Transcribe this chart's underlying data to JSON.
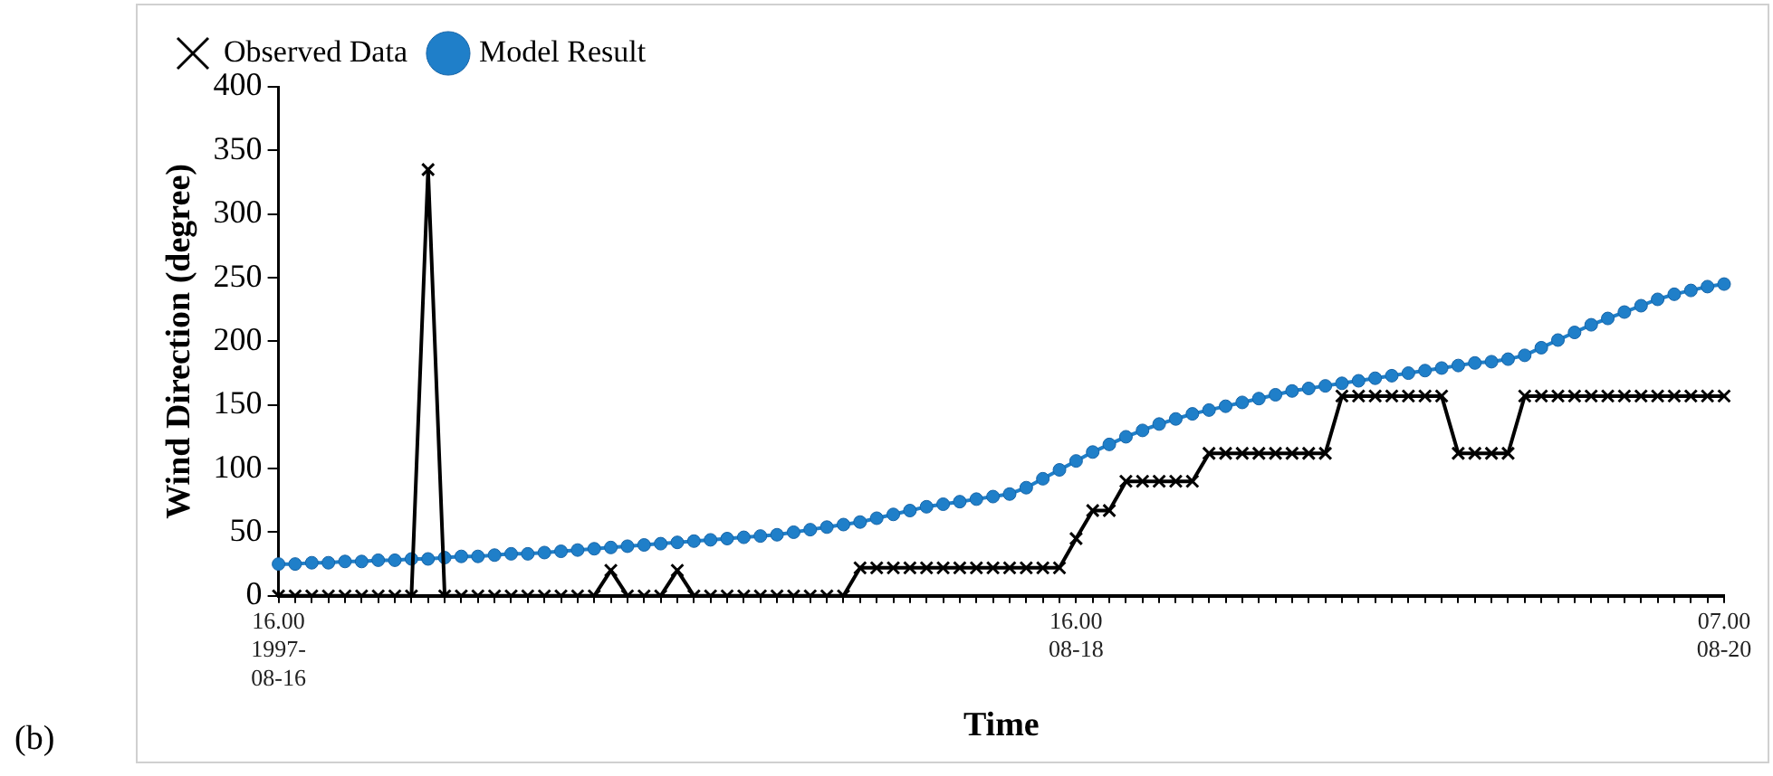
{
  "chart_data": {
    "type": "line",
    "categories": [
      "16.00\n1997-\n08-16",
      null,
      null,
      null,
      null,
      null,
      null,
      null,
      null,
      null,
      null,
      null,
      null,
      null,
      null,
      null,
      null,
      null,
      null,
      null,
      null,
      null,
      null,
      null,
      null,
      null,
      null,
      null,
      null,
      null,
      null,
      null,
      null,
      null,
      null,
      null,
      null,
      null,
      null,
      null,
      null,
      null,
      null,
      null,
      null,
      null,
      null,
      null,
      "16.00\n08-18",
      null,
      null,
      null,
      null,
      null,
      null,
      null,
      null,
      null,
      null,
      null,
      null,
      null,
      null,
      null,
      null,
      null,
      null,
      null,
      null,
      null,
      null,
      null,
      null,
      null,
      null,
      null,
      null,
      null,
      null,
      null,
      null,
      null,
      null,
      null,
      null,
      null,
      null,
      "07.00\n08-20"
    ],
    "series": [
      {
        "name": "Observed Data",
        "color": "#000000",
        "marker": "cross",
        "values": [
          0,
          0,
          0,
          0,
          0,
          0,
          0,
          0,
          0,
          335,
          0,
          0,
          0,
          0,
          0,
          0,
          0,
          0,
          0,
          0,
          20,
          0,
          0,
          0,
          20,
          0,
          0,
          0,
          0,
          0,
          0,
          0,
          0,
          0,
          0,
          22,
          22,
          22,
          22,
          22,
          22,
          22,
          22,
          22,
          22,
          22,
          22,
          22,
          45,
          67,
          67,
          90,
          90,
          90,
          90,
          90,
          112,
          112,
          112,
          112,
          112,
          112,
          112,
          112,
          157,
          157,
          157,
          157,
          157,
          157,
          157,
          112,
          112,
          112,
          112,
          157,
          157,
          157,
          157,
          157,
          157,
          157,
          157,
          157,
          157,
          157,
          157,
          157
        ]
      },
      {
        "name": "Model Result",
        "color": "#1f7fc9",
        "marker": "circle",
        "values": [
          25,
          25,
          26,
          26,
          27,
          27,
          28,
          28,
          29,
          29,
          30,
          31,
          31,
          32,
          33,
          33,
          34,
          35,
          36,
          37,
          38,
          39,
          40,
          41,
          42,
          43,
          44,
          45,
          46,
          47,
          48,
          50,
          52,
          54,
          56,
          58,
          61,
          64,
          67,
          70,
          72,
          74,
          76,
          78,
          80,
          85,
          92,
          99,
          106,
          113,
          119,
          125,
          130,
          135,
          139,
          143,
          146,
          149,
          152,
          155,
          158,
          161,
          163,
          165,
          167,
          169,
          171,
          173,
          175,
          177,
          179,
          181,
          183,
          184,
          186,
          189,
          195,
          201,
          207,
          213,
          218,
          223,
          228,
          233,
          237,
          240,
          243,
          245
        ]
      }
    ],
    "ylim": [
      0,
      400
    ],
    "yticks": [
      0,
      50,
      100,
      150,
      200,
      250,
      300,
      350,
      400
    ],
    "ylabel": "Wind Direction (degree)",
    "xlabel": "Time",
    "legend": "top left",
    "grid": false,
    "line_style": "solid",
    "annotations": [
      "(b)"
    ]
  }
}
